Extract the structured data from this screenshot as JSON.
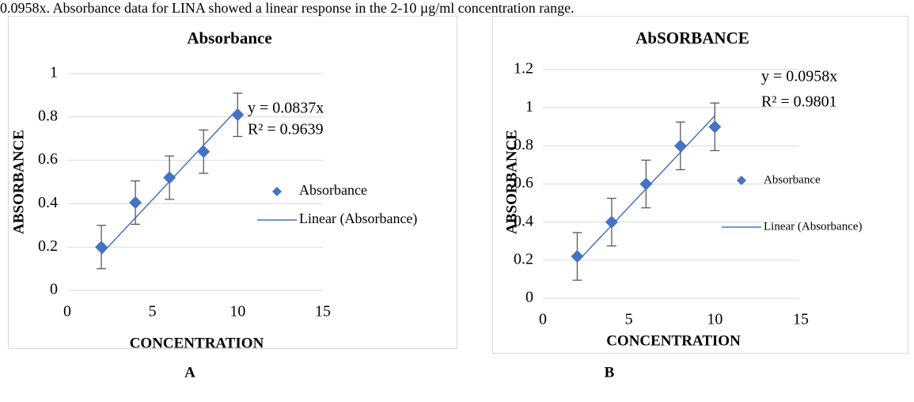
{
  "text": "0.0958x. Absorbance data for LINA showed a linear response in the 2-10 µg/ml concentration range.",
  "chart_data": [
    {
      "type": "scatter",
      "panel_label": "A",
      "title": "Absorbance",
      "xlabel": "CONCENTRATION",
      "ylabel": "ABSORBANCE",
      "xlim": [
        0,
        15
      ],
      "xticks": [
        0,
        5,
        10,
        15
      ],
      "ylim": [
        0,
        1
      ],
      "yticks": [
        0,
        0.2,
        0.4,
        0.6,
        0.8,
        1
      ],
      "grid": true,
      "series": [
        {
          "name": "Absorbance",
          "color": "#4472c4",
          "x": [
            2,
            4,
            6,
            8,
            10
          ],
          "values": [
            0.2,
            0.405,
            0.52,
            0.64,
            0.81
          ],
          "errors": [
            0.1,
            0.1,
            0.1,
            0.1,
            0.1
          ]
        }
      ],
      "trendline": {
        "name": "Linear (Absorbance)",
        "color": "#4472c4",
        "slope": 0.0837,
        "equation": "y = 0.0837x",
        "r2": "R² = 0.9639"
      }
    },
    {
      "type": "scatter",
      "panel_label": "B",
      "title": "AbSORBANCE",
      "xlabel": "CONCENTRATION",
      "ylabel": "ABSORBANCE",
      "xlim": [
        0,
        15
      ],
      "xticks": [
        0,
        5,
        10,
        15
      ],
      "ylim": [
        0,
        1.2
      ],
      "yticks": [
        0,
        0.2,
        0.4,
        0.6,
        0.8,
        1,
        1.2
      ],
      "grid": true,
      "series": [
        {
          "name": "Absorbance",
          "color": "#4472c4",
          "x": [
            2,
            4,
            6,
            8,
            10
          ],
          "values": [
            0.22,
            0.4,
            0.6,
            0.8,
            0.9
          ],
          "errors": [
            0.125,
            0.125,
            0.125,
            0.125,
            0.125
          ]
        }
      ],
      "trendline": {
        "name": "Linear (Absorbance)",
        "color": "#4472c4",
        "slope": 0.0958,
        "equation": "y = 0.0958x",
        "r2": "R² = 0.9801"
      }
    }
  ]
}
